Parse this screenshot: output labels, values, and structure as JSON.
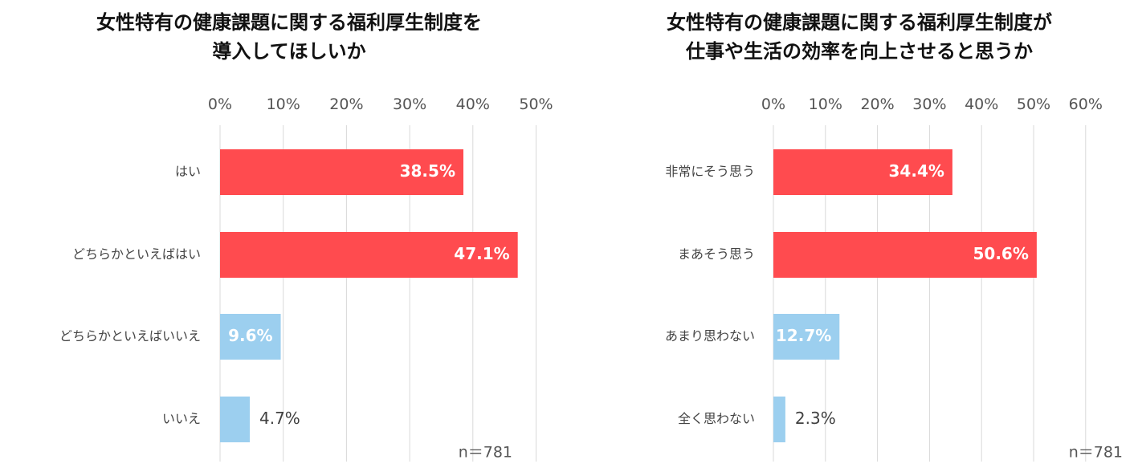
{
  "colors": {
    "positive": "#ff4b4f",
    "negative": "#9ccfef",
    "gridline": "#d9d9d9",
    "label_inside": "#ffffff",
    "label_outside": "#404040"
  },
  "chart_data": [
    {
      "type": "bar",
      "orientation": "horizontal",
      "title_lines": [
        "女性特有の健康課題に関する福利厚生制度を",
        "導入してほしいか"
      ],
      "categories": [
        "はい",
        "どちらかといえばはい",
        "どちらかといえばいいえ",
        "いいえ"
      ],
      "values": [
        38.5,
        47.1,
        9.6,
        4.7
      ],
      "value_labels": [
        "38.5%",
        "47.1%",
        "9.6%",
        "4.7%"
      ],
      "bar_color_keys": [
        "positive",
        "positive",
        "negative",
        "negative"
      ],
      "xlim": [
        0,
        50
      ],
      "xticks": [
        0,
        10,
        20,
        30,
        40,
        50
      ],
      "xtick_labels": [
        "0%",
        "10%",
        "20%",
        "30%",
        "40%",
        "50%"
      ],
      "axis_position": "top",
      "grid": true,
      "note": "n＝781"
    },
    {
      "type": "bar",
      "orientation": "horizontal",
      "title_lines": [
        "女性特有の健康課題に関する福利厚生制度が",
        "仕事や生活の効率を向上させると思うか"
      ],
      "categories": [
        "非常にそう思う",
        "まあそう思う",
        "あまり思わない",
        "全く思わない"
      ],
      "values": [
        34.4,
        50.6,
        12.7,
        2.3
      ],
      "value_labels": [
        "34.4%",
        "50.6%",
        "12.7%",
        "2.3%"
      ],
      "bar_color_keys": [
        "positive",
        "positive",
        "negative",
        "negative"
      ],
      "xlim": [
        0,
        60
      ],
      "xticks": [
        0,
        10,
        20,
        30,
        40,
        50,
        60
      ],
      "xtick_labels": [
        "0%",
        "10%",
        "20%",
        "30%",
        "40%",
        "50%",
        "60%"
      ],
      "axis_position": "top",
      "grid": true,
      "note": "n＝781"
    }
  ]
}
